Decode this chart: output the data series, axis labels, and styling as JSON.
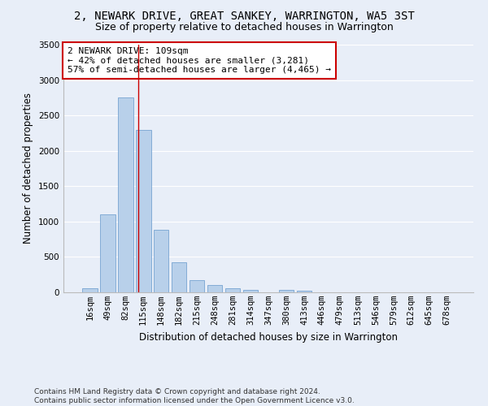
{
  "title": "2, NEWARK DRIVE, GREAT SANKEY, WARRINGTON, WA5 3ST",
  "subtitle": "Size of property relative to detached houses in Warrington",
  "xlabel": "Distribution of detached houses by size in Warrington",
  "ylabel": "Number of detached properties",
  "categories": [
    "16sqm",
    "49sqm",
    "82sqm",
    "115sqm",
    "148sqm",
    "182sqm",
    "215sqm",
    "248sqm",
    "281sqm",
    "314sqm",
    "347sqm",
    "380sqm",
    "413sqm",
    "446sqm",
    "479sqm",
    "513sqm",
    "546sqm",
    "579sqm",
    "612sqm",
    "645sqm",
    "678sqm"
  ],
  "values": [
    60,
    1100,
    2750,
    2300,
    880,
    430,
    170,
    100,
    60,
    40,
    0,
    40,
    25,
    5,
    0,
    0,
    0,
    0,
    0,
    0,
    0
  ],
  "bar_color": "#b8d0ea",
  "bar_edge_color": "#6699cc",
  "background_color": "#e8eef8",
  "grid_color": "#ffffff",
  "vline_color": "#cc0000",
  "annotation_text": "2 NEWARK DRIVE: 109sqm\n← 42% of detached houses are smaller (3,281)\n57% of semi-detached houses are larger (4,465) →",
  "annotation_box_color": "#ffffff",
  "annotation_box_edge": "#cc0000",
  "ylim": [
    0,
    3500
  ],
  "yticks": [
    0,
    500,
    1000,
    1500,
    2000,
    2500,
    3000,
    3500
  ],
  "footer": "Contains HM Land Registry data © Crown copyright and database right 2024.\nContains public sector information licensed under the Open Government Licence v3.0.",
  "title_fontsize": 10,
  "subtitle_fontsize": 9,
  "xlabel_fontsize": 8.5,
  "ylabel_fontsize": 8.5,
  "tick_fontsize": 7.5,
  "annotation_fontsize": 8,
  "footer_fontsize": 6.5
}
